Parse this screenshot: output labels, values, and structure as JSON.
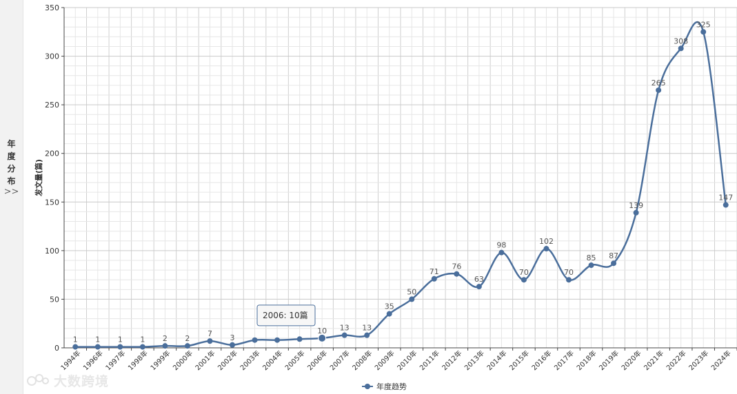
{
  "side_panel": {
    "title_chars": [
      "年",
      "度",
      "分",
      "布"
    ],
    "toggle_icon": "double-chevron-right-icon",
    "toggle_glyph": ">>"
  },
  "watermark": {
    "text": "大数跨境",
    "icon": "brand-logo-icon"
  },
  "tooltip": {
    "text": "2006: 10篇",
    "year": "2006年",
    "value": 10
  },
  "chart_data": {
    "type": "line",
    "categories": [
      "1994年",
      "1996年",
      "1997年",
      "1998年",
      "1999年",
      "2000年",
      "2001年",
      "2002年",
      "2003年",
      "2004年",
      "2005年",
      "2006年",
      "2007年",
      "2008年",
      "2009年",
      "2010年",
      "2011年",
      "2012年",
      "2013年",
      "2014年",
      "2015年",
      "2016年",
      "2017年",
      "2018年",
      "2019年",
      "2020年",
      "2021年",
      "2022年",
      "2023年",
      "2024年"
    ],
    "series": [
      {
        "name": "年度趋势",
        "values": [
          1,
          1,
          1,
          1,
          2,
          2,
          7,
          3,
          8,
          8,
          9,
          10,
          13,
          13,
          35,
          50,
          71,
          76,
          63,
          98,
          70,
          102,
          70,
          85,
          87,
          139,
          265,
          308,
          325,
          147
        ],
        "color": "#4a6e9b"
      }
    ],
    "ylabel": "发文量(篇)",
    "xlabel": "",
    "ylim": [
      0,
      350
    ],
    "yticks": [
      0,
      50,
      100,
      150,
      200,
      250,
      300,
      350
    ],
    "grid": true,
    "legend_position": "bottom-center",
    "data_labels_hidden_under_tooltip": [
      "2003年",
      "2004年",
      "2005年"
    ]
  }
}
